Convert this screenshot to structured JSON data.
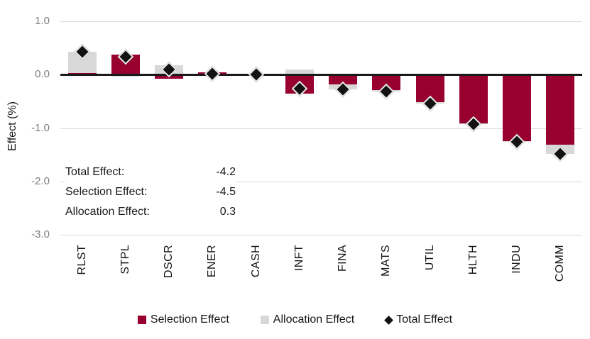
{
  "chart_data": {
    "type": "bar",
    "stacked": true,
    "title": "",
    "xlabel": "",
    "ylabel": "Effect (%)",
    "ylim": [
      -3.0,
      1.0
    ],
    "yticks": [
      1.0,
      0.0,
      -1.0,
      -2.0,
      -3.0
    ],
    "grid": true,
    "legend_position": "bottom",
    "categories": [
      "RLST",
      "STPL",
      "DSCR",
      "ENER",
      "CASH",
      "INFT",
      "FINA",
      "MATS",
      "UTIL",
      "HLTH",
      "INDU",
      "COMM"
    ],
    "series": [
      {
        "name": "Selection Effect",
        "color": "#97002F",
        "values": [
          0.03,
          0.37,
          -0.08,
          0.04,
          0.0,
          -0.36,
          -0.18,
          -0.29,
          -0.52,
          -0.91,
          -1.25,
          -1.31
        ]
      },
      {
        "name": "Allocation Effect",
        "color": "#D8D8D8",
        "values": [
          0.4,
          -0.03,
          0.17,
          -0.02,
          0.0,
          0.1,
          -0.1,
          -0.02,
          -0.02,
          -0.02,
          -0.01,
          -0.17
        ]
      }
    ],
    "totals": {
      "name": "Total Effect",
      "marker": "diamond",
      "color": "#121212",
      "values": [
        0.43,
        0.34,
        0.09,
        0.02,
        0.0,
        -0.26,
        -0.28,
        -0.31,
        -0.54,
        -0.93,
        -1.26,
        -1.48
      ]
    }
  },
  "annotation": {
    "rows": [
      {
        "label": "Total Effect:",
        "value": "-4.2"
      },
      {
        "label": "Selection Effect:",
        "value": "-4.5"
      },
      {
        "label": "Allocation Effect:",
        "value": "0.3"
      }
    ]
  },
  "legend": {
    "items": [
      {
        "label": "Selection Effect",
        "marker": "square",
        "color": "#97002F"
      },
      {
        "label": "Allocation Effect",
        "marker": "square",
        "color": "#D8D8D8"
      },
      {
        "label": "Total Effect",
        "marker": "diamond",
        "color": "#121212"
      }
    ]
  },
  "colors": {
    "selection": "#97002F",
    "allocation": "#D8D8D8",
    "total_marker": "#121212",
    "gridline": "#DADADA",
    "zero_axis": "#1A1A1A",
    "tick_text": "#7D7D7D"
  }
}
